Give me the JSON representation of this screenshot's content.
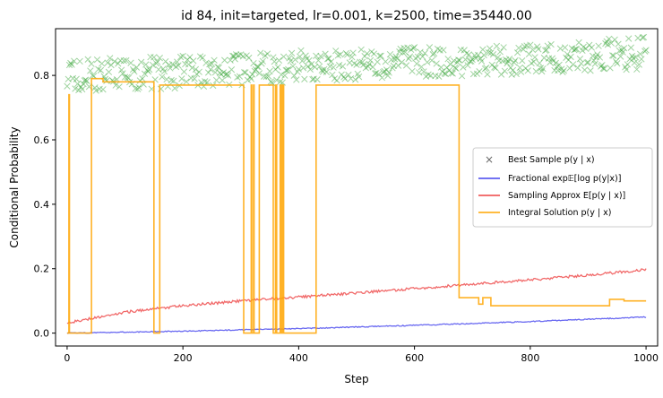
{
  "chart_data": {
    "type": "line",
    "title": "id 84, init=targeted, lr=0.001, k=2500, time=35440.00",
    "xlabel": "Step",
    "ylabel": "Conditional Probability",
    "xlim": [
      -20,
      1020
    ],
    "ylim": [
      -0.04,
      0.945
    ],
    "xticks": [
      0,
      200,
      400,
      600,
      800,
      1000
    ],
    "yticks": [
      0.0,
      0.2,
      0.4,
      0.6,
      0.8
    ],
    "xtick_labels": [
      "0",
      "200",
      "400",
      "600",
      "800",
      "1000"
    ],
    "ytick_labels": [
      "0.0",
      "0.2",
      "0.4",
      "0.6",
      "0.8"
    ],
    "grid": false,
    "legend_position": "center-right",
    "series": [
      {
        "name": "Best Sample p(y | x)",
        "kind": "scatter-x",
        "color": "#2ca02c",
        "description_trend": [
          [
            0,
            0.8
          ],
          [
            200,
            0.81
          ],
          [
            400,
            0.83
          ],
          [
            600,
            0.84
          ],
          [
            800,
            0.85
          ],
          [
            1000,
            0.87
          ]
        ],
        "band": 0.05
      },
      {
        "name": "Fractional exp𝔼[log p(y|x)]",
        "kind": "line",
        "color": "#4444ee",
        "x": [
          0,
          100,
          200,
          300,
          400,
          500,
          600,
          700,
          800,
          900,
          1000
        ],
        "values": [
          0.0,
          0.003,
          0.006,
          0.01,
          0.014,
          0.019,
          0.024,
          0.03,
          0.036,
          0.043,
          0.05
        ]
      },
      {
        "name": "Sampling Approx E[p(y | x)]",
        "kind": "line",
        "color": "#ee4444",
        "x": [
          0,
          100,
          200,
          300,
          400,
          500,
          600,
          700,
          800,
          900,
          1000
        ],
        "values": [
          0.032,
          0.065,
          0.085,
          0.1,
          0.112,
          0.125,
          0.138,
          0.152,
          0.165,
          0.18,
          0.197
        ]
      },
      {
        "name": "Integral Solution p(y | x)",
        "kind": "step",
        "color": "#ffa500",
        "x": [
          0,
          3,
          4,
          40,
          42,
          60,
          62,
          148,
          150,
          158,
          160,
          300,
          302,
          305,
          307,
          318,
          319,
          322,
          323,
          330,
          332,
          355,
          356,
          360,
          362,
          368,
          370,
          372,
          374,
          378,
          380,
          428,
          430,
          675,
          677,
          710,
          711,
          718,
          720,
          730,
          732,
          935,
          937,
          960,
          962,
          1000
        ],
        "values": [
          0.0,
          0.74,
          0.0,
          0.0,
          0.79,
          0.79,
          0.78,
          0.78,
          0.0,
          0.0,
          0.77,
          0.77,
          0.77,
          0.0,
          0.0,
          0.77,
          0.0,
          0.77,
          0.0,
          0.0,
          0.77,
          0.77,
          0.0,
          0.77,
          0.0,
          0.77,
          0.0,
          0.77,
          0.0,
          0.0,
          0.0,
          0.0,
          0.77,
          0.77,
          0.11,
          0.11,
          0.09,
          0.11,
          0.11,
          0.11,
          0.085,
          0.085,
          0.105,
          0.105,
          0.1,
          0.1
        ]
      }
    ]
  }
}
